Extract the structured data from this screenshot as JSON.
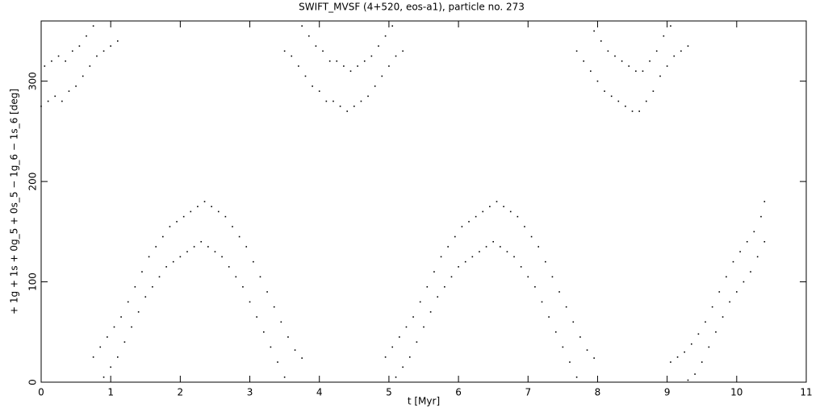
{
  "chart_data": {
    "type": "scatter",
    "title": "SWIFT_MVSF (4+520, eos-a1), particle no. 273",
    "x_label": "t [Myr]",
    "y_label": "+ 1g + 1s + 0g_5 + 0s_5 − 1g_6 − 1s_6 [deg]",
    "xlim": [
      0,
      11
    ],
    "ylim": [
      0,
      360
    ],
    "xticks": [
      0,
      1,
      2,
      3,
      4,
      5,
      6,
      7,
      8,
      9,
      10,
      11
    ],
    "yticks": [
      0,
      100,
      200,
      300
    ],
    "series": [
      {
        "color": "#000000",
        "x": [
          0,
          0.05,
          0.1,
          0.15,
          0.2,
          0.25,
          0.3,
          0.35,
          0.4,
          0.45,
          0.5,
          0.55,
          0.6,
          0.65,
          0.7,
          0.75,
          0.8,
          0.9,
          1.0,
          1.1,
          0.75,
          0.85,
          0.9,
          0.95,
          1.0,
          1.05,
          1.1,
          1.15,
          1.2,
          1.25,
          1.3,
          1.35,
          1.4,
          1.45,
          1.5,
          1.55,
          1.6,
          1.65,
          1.7,
          1.75,
          1.8,
          1.85,
          1.9,
          1.95,
          2.0,
          2.05,
          2.1,
          2.15,
          2.2,
          2.25,
          2.3,
          2.35,
          2.4,
          2.45,
          2.5,
          2.55,
          2.6,
          2.65,
          2.7,
          2.75,
          2.8,
          2.85,
          2.9,
          2.95,
          3.0,
          3.05,
          3.1,
          3.15,
          3.2,
          3.25,
          3.3,
          3.35,
          3.4,
          3.45,
          3.5,
          3.55,
          3.65,
          3.75,
          3.5,
          3.6,
          3.7,
          3.75,
          3.8,
          3.85,
          3.9,
          3.95,
          4.0,
          4.05,
          4.1,
          4.15,
          4.2,
          4.25,
          4.3,
          4.35,
          4.4,
          4.45,
          4.5,
          4.55,
          4.6,
          4.65,
          4.7,
          4.75,
          4.8,
          4.85,
          4.9,
          4.95,
          5.0,
          5.05,
          5.1,
          5.2,
          4.95,
          5.05,
          5.1,
          5.15,
          5.2,
          5.25,
          5.3,
          5.35,
          5.4,
          5.45,
          5.5,
          5.55,
          5.6,
          5.65,
          5.7,
          5.75,
          5.8,
          5.85,
          5.9,
          5.95,
          6.0,
          6.05,
          6.1,
          6.15,
          6.2,
          6.25,
          6.3,
          6.35,
          6.4,
          6.45,
          6.5,
          6.55,
          6.6,
          6.65,
          6.7,
          6.75,
          6.8,
          6.85,
          6.9,
          6.95,
          7.0,
          7.05,
          7.1,
          7.15,
          7.2,
          7.25,
          7.3,
          7.35,
          7.4,
          7.45,
          7.5,
          7.55,
          7.6,
          7.65,
          7.7,
          7.75,
          7.85,
          7.95,
          7.7,
          7.8,
          7.9,
          7.95,
          8.0,
          8.05,
          8.1,
          8.15,
          8.2,
          8.25,
          8.3,
          8.35,
          8.4,
          8.45,
          8.5,
          8.55,
          8.6,
          8.65,
          8.7,
          8.75,
          8.8,
          8.85,
          8.9,
          8.95,
          9.0,
          9.05,
          9.1,
          9.2,
          9.3,
          9.05,
          9.15,
          9.25,
          9.3,
          9.35,
          9.4,
          9.45,
          9.5,
          9.55,
          9.6,
          9.65,
          9.7,
          9.75,
          9.8,
          9.85,
          9.9,
          9.95,
          10.0,
          10.05,
          10.1,
          10.15,
          10.2,
          10.25,
          10.3,
          10.35,
          10.4,
          10.4
        ],
        "y": [
          275,
          315,
          280,
          320,
          285,
          325,
          280,
          320,
          290,
          330,
          295,
          335,
          305,
          345,
          315,
          355,
          325,
          330,
          335,
          340,
          25,
          35,
          5,
          45,
          15,
          55,
          25,
          65,
          40,
          80,
          55,
          95,
          70,
          110,
          85,
          125,
          95,
          135,
          105,
          145,
          115,
          155,
          120,
          160,
          125,
          165,
          130,
          170,
          135,
          175,
          140,
          180,
          135,
          175,
          130,
          170,
          125,
          165,
          115,
          155,
          105,
          145,
          95,
          135,
          80,
          120,
          65,
          105,
          50,
          90,
          35,
          75,
          20,
          60,
          5,
          45,
          32,
          24,
          330,
          325,
          315,
          355,
          305,
          345,
          295,
          335,
          290,
          330,
          280,
          320,
          280,
          320,
          275,
          315,
          270,
          310,
          275,
          315,
          280,
          320,
          285,
          325,
          295,
          335,
          305,
          345,
          315,
          355,
          325,
          330,
          25,
          35,
          5,
          45,
          15,
          55,
          25,
          65,
          40,
          80,
          55,
          95,
          70,
          110,
          85,
          125,
          95,
          135,
          105,
          145,
          115,
          155,
          120,
          160,
          125,
          165,
          130,
          170,
          135,
          175,
          140,
          180,
          135,
          175,
          130,
          170,
          125,
          165,
          115,
          155,
          105,
          145,
          95,
          135,
          80,
          120,
          65,
          105,
          50,
          90,
          35,
          75,
          20,
          60,
          5,
          45,
          32,
          24,
          330,
          320,
          310,
          350,
          300,
          340,
          290,
          330,
          285,
          325,
          280,
          320,
          275,
          315,
          270,
          310,
          270,
          310,
          280,
          320,
          290,
          330,
          305,
          345,
          315,
          355,
          325,
          330,
          335,
          20,
          25,
          30,
          2,
          38,
          8,
          48,
          20,
          60,
          35,
          75,
          50,
          90,
          65,
          105,
          80,
          120,
          90,
          130,
          100,
          140,
          110,
          150,
          125,
          165,
          140,
          180
        ]
      }
    ]
  }
}
